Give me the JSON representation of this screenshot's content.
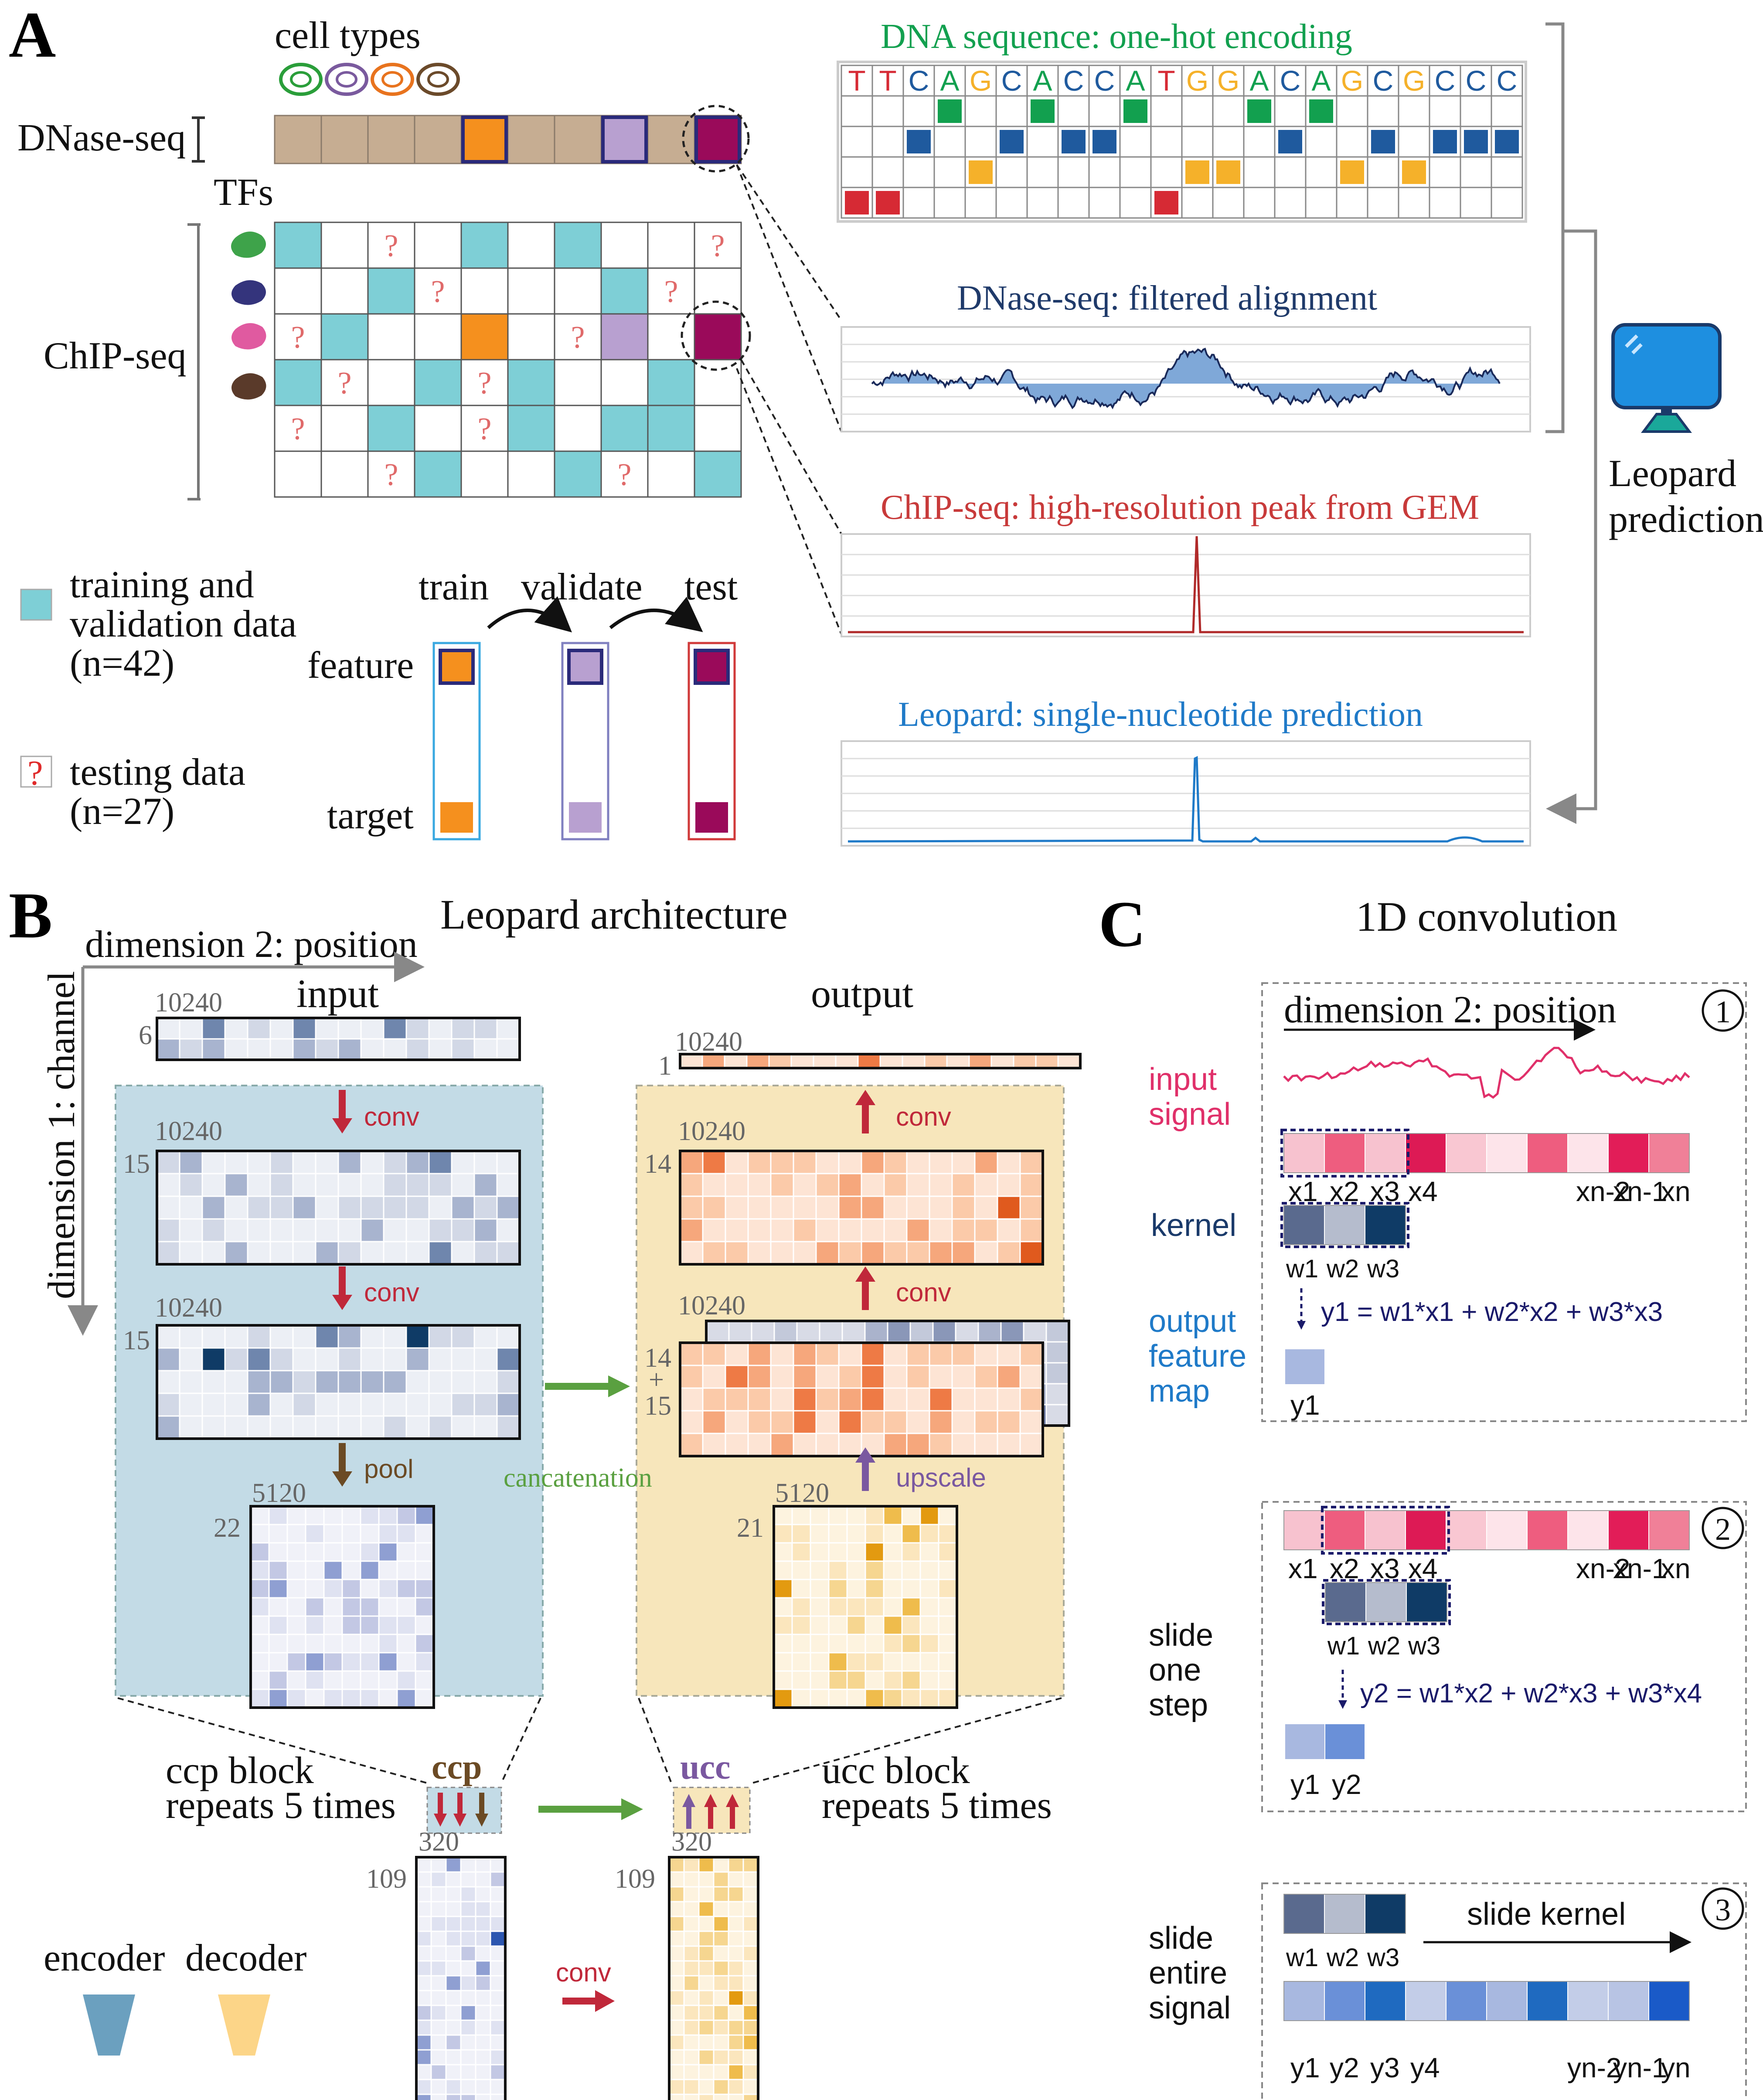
{
  "panel_a": {
    "letter": "A",
    "cell_types": "cell types",
    "dnase_seq": "DNase-seq",
    "tfs": "TFs",
    "chip_seq": "ChIP-seq",
    "q": "?",
    "legend_train": [
      "training and",
      "validation data",
      "(n=42)"
    ],
    "legend_test": [
      "testing data",
      "(n=27)"
    ],
    "train": "train",
    "validate": "validate",
    "test": "test",
    "feature": "feature",
    "target": "target",
    "dna_title": "DNA sequence: one-hot encoding",
    "dna_seq": [
      "T",
      "T",
      "C",
      "A",
      "G",
      "C",
      "A",
      "C",
      "C",
      "A",
      "T",
      "G",
      "G",
      "A",
      "C",
      "A",
      "G",
      "C",
      "G",
      "C",
      "C",
      "C"
    ],
    "dnase_title": "DNase-seq: filtered alignment",
    "chip_title": "ChIP-seq: high-resolution peak from GEM",
    "leopard_title": "Leopard: single-nucleotide prediction",
    "leopard_pred": [
      "Leopard",
      "prediction"
    ],
    "colors": {
      "A": "#12a04f",
      "C": "#1f5a9e",
      "G": "#f5b12a",
      "T": "#d62a34"
    }
  },
  "panel_b": {
    "letter": "B",
    "title": "Leopard architecture",
    "dim2": "dimension 2: position",
    "dim1": "dimension 1: channel",
    "input": "input",
    "output": "output",
    "conv": "conv",
    "pool": "pool",
    "upscale": "upscale",
    "concat": "cancatenation",
    "n10240": "10240",
    "n5120": "5120",
    "n320": "320",
    "n6": "6",
    "n15": "15",
    "n22": "22",
    "n1": "1",
    "n14": "14",
    "plus": "+",
    "n21": "21",
    "n109": "109",
    "ccp": "ccp",
    "ucc": "ucc",
    "ccp_block": [
      "ccp block",
      "repeats 5 times"
    ],
    "ucc_block": [
      "ucc block",
      "repeats 5 times"
    ],
    "encoder": "encoder",
    "decoder": "decoder"
  },
  "panel_c": {
    "letter": "C",
    "title": "1D convolution",
    "step1": "1",
    "step2": "2",
    "step3": "3",
    "dim2": "dimension 2: position",
    "input_signal": [
      "input",
      "signal"
    ],
    "kernel": "kernel",
    "output_map": [
      "output",
      "feature",
      "map"
    ],
    "x_labels": [
      "x1",
      "x2",
      "x3",
      "x4",
      "xn-2",
      "xn-1",
      "xn"
    ],
    "w_labels": [
      "w1",
      "w2",
      "w3"
    ],
    "eq1": "y1 = w1*x1 + w2*x2 + w3*x3",
    "eq2": "y2 = w1*x2 + w2*x3 + w3*x4",
    "slide_one": [
      "slide",
      "one",
      "step"
    ],
    "slide_entire": [
      "slide",
      "entire",
      "signal"
    ],
    "slide_kernel": "slide kernel",
    "y_labels": [
      "y1",
      "y2",
      "y3",
      "y4",
      "yn-2",
      "yn-1",
      "yn"
    ]
  }
}
